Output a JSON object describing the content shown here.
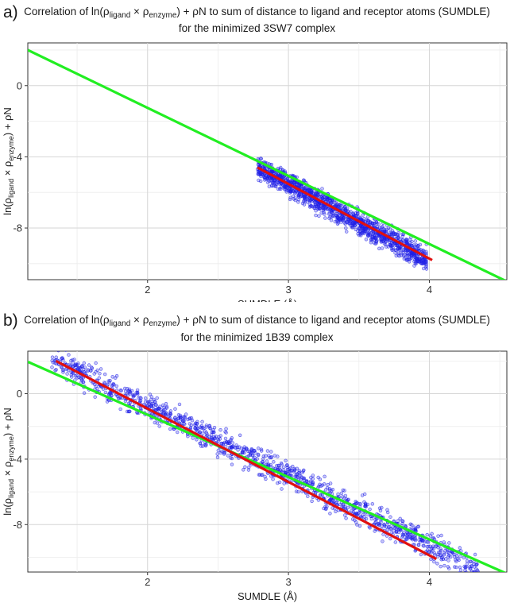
{
  "chart_data": [
    {
      "panel": "a)",
      "type": "scatter",
      "title_parts": {
        "prefix": "Correlation of ln(",
        "rho1": "ρ",
        "sub1": "ligand",
        "times": " × ",
        "rho2": "ρ",
        "sub2": "enzyme",
        "suffix": ") + ρN to sum of distance to ligand and receptor atoms (SUMDLE)"
      },
      "subtitle": "for the minimized 3SW7 complex",
      "xlabel": "SUMDLE (Å)",
      "ylabel_parts": {
        "prefix": "ln(",
        "rho1": "ρ",
        "sub1": "ligand",
        "times": " × ",
        "rho2": "ρ",
        "sub2": "enzyme",
        "suffix": ") + ρN"
      },
      "xlim": [
        1.15,
        4.55
      ],
      "ylim": [
        -10.9,
        2.4
      ],
      "x_ticks": [
        2,
        3,
        4
      ],
      "x_tick_labels": [
        "2",
        "3",
        "4"
      ],
      "y_ticks": [
        0,
        -4,
        -8
      ],
      "y_tick_labels": [
        "0",
        "-4",
        "-8"
      ],
      "grid": true,
      "scatter_cloud": {
        "x_range": [
          2.78,
          3.98
        ],
        "y_at_start": -4.6,
        "slope": -4.3,
        "spread": 0.55
      },
      "fit_line_red": {
        "x": [
          2.78,
          4.02
        ],
        "y": [
          -4.6,
          -9.8
        ]
      },
      "reference_line_green": {
        "x": [
          1.15,
          4.55
        ],
        "y": [
          2.0,
          -11.0
        ]
      },
      "colors": {
        "points": "#1f1fe6",
        "fit": "#e01010",
        "reference": "#22ee22"
      }
    },
    {
      "panel": "b)",
      "type": "scatter",
      "title_parts": {
        "prefix": "Correlation of ln(",
        "rho1": "ρ",
        "sub1": "ligand",
        "times": " × ",
        "rho2": "ρ",
        "sub2": "enzyme",
        "suffix": ") + ρN to sum of distance to ligand and receptor atoms (SUMDLE)"
      },
      "subtitle": "for the minimized 1B39 complex",
      "xlabel": "SUMDLE (Å)",
      "ylabel_parts": {
        "prefix": "ln(",
        "rho1": "ρ",
        "sub1": "ligand",
        "times": " × ",
        "rho2": "ρ",
        "sub2": "enzyme",
        "suffix": ") + ρN"
      },
      "xlim": [
        1.15,
        4.55
      ],
      "ylim": [
        -10.9,
        2.6
      ],
      "x_ticks": [
        2,
        3,
        4
      ],
      "x_tick_labels": [
        "2",
        "3",
        "4"
      ],
      "y_ticks": [
        0,
        -4,
        -8
      ],
      "y_tick_labels": [
        "0",
        "-4",
        "-8"
      ],
      "grid": true,
      "scatter_cloud": {
        "x_range": [
          1.32,
          4.35
        ],
        "y_at_start": 2.1,
        "slope": -4.25,
        "spread": 0.7
      },
      "fit_line_red": {
        "x": [
          1.35,
          4.05
        ],
        "y": [
          2.0,
          -10.1
        ]
      },
      "reference_line_green": {
        "x": [
          1.15,
          4.55
        ],
        "y": [
          1.95,
          -11.0
        ]
      },
      "colors": {
        "points": "#1f1fe6",
        "fit": "#e01010",
        "reference": "#22ee22"
      }
    }
  ]
}
